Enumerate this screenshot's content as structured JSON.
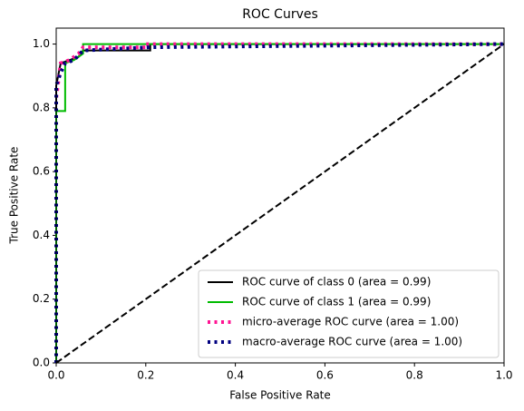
{
  "chart_data": {
    "type": "line",
    "title": "ROC Curves",
    "x_label": "False Positive Rate",
    "y_label": "True Positive Rate",
    "xlim": [
      0,
      1
    ],
    "ylim": [
      0,
      1.05
    ],
    "xticks": [
      {
        "value": 0,
        "label": "0.0"
      },
      0.2,
      0.4,
      0.6,
      0.8,
      {
        "value": 1,
        "label": "1.0"
      }
    ],
    "yticks": [
      {
        "value": 0,
        "label": "0.0"
      },
      0.2,
      0.4,
      0.6,
      0.8,
      {
        "value": 1,
        "label": "1.0"
      }
    ],
    "grid": false,
    "legend": "lower right",
    "series": [
      {
        "name": "ROC curve of class 0 (area = 0.99)",
        "color": "#000000",
        "style": "solid",
        "x": [
          0,
          0,
          0.01,
          0.03,
          0.05,
          0.06,
          0.21,
          0.21,
          1
        ],
        "values": [
          0,
          0.87,
          0.94,
          0.95,
          0.96,
          0.98,
          0.98,
          1,
          1
        ]
      },
      {
        "name": "ROC curve of class 1 (area = 0.99)",
        "color": "#00bb00",
        "style": "solid",
        "x": [
          0,
          0,
          0.02,
          0.02,
          0.04,
          0.06,
          0.06,
          1
        ],
        "values": [
          0,
          0.79,
          0.79,
          0.94,
          0.95,
          0.97,
          1,
          1
        ]
      },
      {
        "name": "micro-average ROC curve (area = 1.00)",
        "color": "#ff1493",
        "style": "dotted",
        "x": [
          0,
          0,
          0.01,
          0.03,
          0.05,
          0.06,
          0.2,
          0.2,
          1
        ],
        "values": [
          0,
          0.83,
          0.94,
          0.95,
          0.97,
          0.99,
          0.99,
          1,
          1
        ]
      },
      {
        "name": "macro-average ROC curve (area = 1.00)",
        "color": "#000080",
        "style": "dotted",
        "x": [
          0,
          0,
          0.01,
          0.02,
          0.04,
          0.06,
          0.21,
          1
        ],
        "values": [
          0,
          0.87,
          0.91,
          0.94,
          0.95,
          0.98,
          0.99,
          1
        ]
      },
      {
        "color": "#000000",
        "style": "dashed",
        "legend": false,
        "x": [
          0,
          1
        ],
        "values": [
          0,
          1
        ]
      }
    ]
  }
}
